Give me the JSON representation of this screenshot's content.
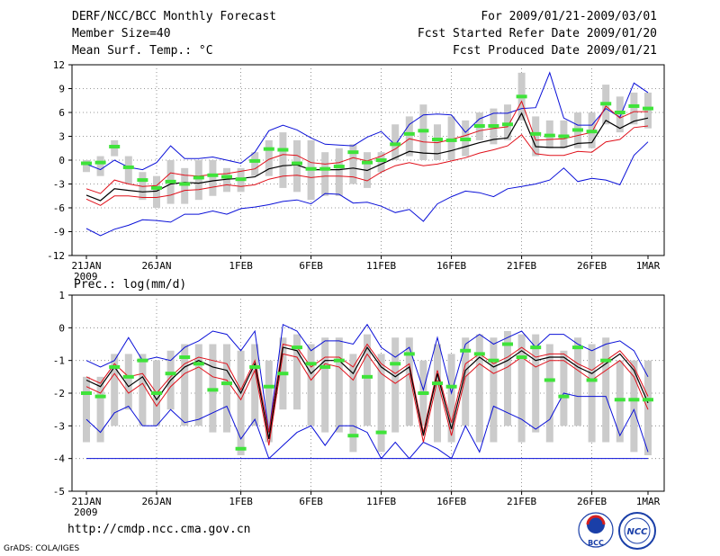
{
  "header": {
    "title": "DERF/NCC/BCC Monthly Forecast",
    "member_size": "Member Size=40",
    "variable_top": "Mean Surf. Temp.: °C",
    "period": "For 2009/01/21-2009/03/01",
    "fcst_started": "Fcst Started Refer Date 2009/01/20",
    "fcst_produced": "Fcst Produced Date 2009/01/21"
  },
  "footer": {
    "url": "http://cmdp.ncc.cma.gov.cn",
    "credit": "GrADS: COLA/IGES"
  },
  "logos": {
    "bcc_text": "BCC",
    "ncc_text": "NCC"
  },
  "colors": {
    "box": "#cbcbcb",
    "mean": "#000000",
    "spread": "#e0101a",
    "envelope": "#0a10d8",
    "median": "#3fe33a",
    "grid": "#7a7a7a"
  },
  "chart_data": [
    {
      "id": "temperature",
      "type": "line",
      "title": "Mean Surf. Temp.: °C",
      "x_tick_labels": [
        "21JAN",
        "26JAN",
        "1FEB",
        "6FEB",
        "11FEB",
        "16FEB",
        "21FEB",
        "26FEB",
        "1MAR"
      ],
      "x_sub_label": "2009",
      "y_ticks": [
        12,
        9,
        6,
        3,
        0,
        -3,
        -6,
        -9,
        -12
      ],
      "ylim": [
        -12,
        12
      ],
      "x_range": [
        0,
        39
      ],
      "series": [
        {
          "name": "max",
          "values": [
            -8.6,
            -9.5,
            -8.7,
            -8.2,
            -7.5,
            -7.6,
            -7.8,
            -6.8,
            -6.8,
            -6.4,
            -6.8,
            -6.1,
            -5.9,
            -5.6,
            -5.2,
            -5.0,
            -5.5,
            -4.2,
            -4.3,
            -5.4,
            -5.3,
            -5.8,
            -6.6,
            -6.2,
            -7.7,
            -5.5,
            -4.6,
            -3.9,
            -4.1,
            -4.6,
            -3.6,
            -3.3,
            -3.0,
            -2.5,
            -1.0,
            -2.7,
            -2.3,
            -2.5,
            -3.1,
            0.6,
            2.3
          ]
        },
        {
          "name": "min",
          "values": [
            -0.5,
            -1.2,
            0.0,
            -0.9,
            -1.2,
            -0.3,
            1.8,
            0.2,
            0.2,
            0.4,
            0.0,
            -0.4,
            1.0,
            3.7,
            4.4,
            3.8,
            2.8,
            2.0,
            1.9,
            1.8,
            2.9,
            3.6,
            1.9,
            4.5,
            5.7,
            5.8,
            5.7,
            3.5,
            5.2,
            5.9,
            5.9,
            6.5,
            6.6,
            11.0,
            5.3,
            4.4,
            4.4,
            6.5,
            5.4,
            9.7,
            8.5
          ]
        },
        {
          "name": "lower",
          "values": [
            -4.9,
            -5.7,
            -4.5,
            -4.5,
            -4.7,
            -4.7,
            -4.4,
            -3.8,
            -3.7,
            -3.4,
            -3.1,
            -3.3,
            -3.1,
            -2.4,
            -2.0,
            -1.9,
            -2.2,
            -2.0,
            -2.0,
            -2.1,
            -2.6,
            -1.5,
            -0.7,
            -0.3,
            -0.7,
            -0.5,
            -0.1,
            0.3,
            0.9,
            1.3,
            1.8,
            3.2,
            0.8,
            0.6,
            0.6,
            1.1,
            1.0,
            2.3,
            2.6,
            4.1,
            4.3
          ]
        },
        {
          "name": "upper",
          "values": [
            -3.6,
            -4.2,
            -2.5,
            -3.0,
            -3.3,
            -3.2,
            -1.6,
            -1.9,
            -2.0,
            -1.8,
            -1.7,
            -1.4,
            -1.1,
            0.1,
            0.7,
            0.6,
            -0.3,
            -0.5,
            -0.3,
            0.3,
            -0.1,
            0.5,
            1.4,
            2.7,
            2.3,
            2.2,
            2.6,
            3.1,
            3.7,
            4.0,
            4.2,
            7.4,
            2.5,
            2.6,
            2.7,
            3.1,
            3.5,
            6.8,
            5.3,
            6.1,
            6.1
          ]
        },
        {
          "name": "mean",
          "values": [
            -4.4,
            -5.1,
            -3.6,
            -3.8,
            -4.0,
            -3.9,
            -3.0,
            -2.8,
            -2.9,
            -2.6,
            -2.4,
            -2.3,
            -2.1,
            -1.1,
            -0.7,
            -0.6,
            -1.2,
            -1.2,
            -1.2,
            -1.0,
            -1.3,
            -0.5,
            0.3,
            1.1,
            0.9,
            0.8,
            1.2,
            1.7,
            2.2,
            2.6,
            2.8,
            5.9,
            1.7,
            1.6,
            1.6,
            2.1,
            2.2,
            5.0,
            4.0,
            4.9,
            5.3
          ]
        },
        {
          "name": "median",
          "values": [
            -0.4,
            -0.3,
            1.7,
            -0.9,
            -2.5,
            -3.5,
            -2.7,
            -3.0,
            -2.2,
            -1.9,
            -2.1,
            -2.4,
            -0.1,
            1.4,
            1.3,
            -0.4,
            -1.1,
            -1.1,
            -0.8,
            1.0,
            -0.3,
            0.0,
            2.0,
            3.3,
            3.7,
            2.6,
            2.5,
            2.6,
            4.3,
            4.3,
            4.5,
            8.0,
            3.3,
            3.1,
            3.0,
            3.8,
            3.6,
            7.1,
            6.0,
            6.8,
            6.5
          ]
        },
        {
          "name": "box_low",
          "values": [
            -1.5,
            -2.0,
            0.5,
            -3.0,
            -5.0,
            -6.0,
            -5.5,
            -5.5,
            -5.0,
            -4.5,
            -4.0,
            -4.0,
            -2.0,
            -2.0,
            -3.5,
            -4.0,
            -5.0,
            -4.5,
            -4.5,
            -3.0,
            -3.5,
            -1.5,
            0.0,
            0.5,
            0.0,
            0.0,
            0.0,
            0.5,
            2.5,
            2.0,
            2.5,
            5.0,
            0.5,
            1.5,
            1.5,
            1.5,
            1.5,
            4.5,
            3.5,
            4.5,
            4.0
          ]
        },
        {
          "name": "box_high",
          "values": [
            0.0,
            0.5,
            2.5,
            0.5,
            -1.5,
            -2.0,
            0.0,
            -1.0,
            0.0,
            0.0,
            -1.0,
            -1.0,
            1.0,
            2.5,
            3.5,
            2.5,
            2.5,
            1.0,
            1.5,
            2.0,
            1.0,
            1.0,
            4.5,
            5.5,
            7.0,
            4.5,
            5.5,
            5.0,
            6.0,
            6.5,
            7.0,
            11.0,
            5.5,
            5.0,
            5.0,
            6.0,
            6.0,
            9.5,
            8.0,
            8.5,
            8.5
          ]
        }
      ]
    },
    {
      "id": "precipitation",
      "type": "line",
      "title": "Prec.: log(mm/d)",
      "x_tick_labels": [
        "21JAN",
        "26JAN",
        "1FEB",
        "6FEB",
        "11FEB",
        "16FEB",
        "21FEB",
        "26FEB",
        "1MAR"
      ],
      "x_sub_label": "2009",
      "y_ticks": [
        1,
        0,
        -1,
        -2,
        -3,
        -4,
        -5
      ],
      "ylim": [
        -5,
        1
      ],
      "x_range": [
        0,
        39
      ],
      "baseline": -4,
      "series": [
        {
          "name": "max",
          "values": [
            -1.0,
            -1.2,
            -1.0,
            -0.3,
            -1.0,
            -0.9,
            -1.0,
            -0.6,
            -0.4,
            -0.1,
            -0.2,
            -0.7,
            -0.1,
            -3.2,
            0.1,
            -0.1,
            -0.7,
            -0.4,
            -0.4,
            -0.5,
            0.1,
            -0.6,
            -0.9,
            -0.6,
            -1.9,
            -0.3,
            -2.0,
            -0.5,
            -0.2,
            -0.5,
            -0.3,
            -0.1,
            -0.6,
            -0.2,
            -0.2,
            -0.5,
            -0.7,
            -0.5,
            -0.4,
            -0.7,
            -1.5
          ]
        },
        {
          "name": "min",
          "values": [
            -2.8,
            -3.2,
            -2.6,
            -2.4,
            -3.0,
            -3.0,
            -2.5,
            -2.9,
            -2.8,
            -2.6,
            -2.4,
            -3.4,
            -2.8,
            -4.0,
            -3.6,
            -3.2,
            -3.0,
            -3.6,
            -3.0,
            -3.0,
            -3.2,
            -4.0,
            -3.5,
            -4.0,
            -3.5,
            -3.7,
            -4.0,
            -3.0,
            -3.8,
            -2.4,
            -2.6,
            -2.8,
            -3.1,
            -2.8,
            -2.0,
            -2.1,
            -2.1,
            -2.1,
            -3.3,
            -2.5,
            -3.8
          ]
        },
        {
          "name": "lower",
          "values": [
            -1.8,
            -2.0,
            -1.4,
            -2.0,
            -1.7,
            -2.4,
            -1.8,
            -1.4,
            -1.2,
            -1.5,
            -1.6,
            -2.2,
            -1.3,
            -3.6,
            -0.8,
            -0.9,
            -1.6,
            -1.1,
            -1.2,
            -1.6,
            -0.8,
            -1.4,
            -1.7,
            -1.4,
            -3.5,
            -1.6,
            -3.3,
            -1.5,
            -1.1,
            -1.4,
            -1.2,
            -0.9,
            -1.2,
            -1.0,
            -1.0,
            -1.3,
            -1.6,
            -1.3,
            -1.0,
            -1.5,
            -2.5
          ]
        },
        {
          "name": "upper",
          "values": [
            -1.5,
            -1.7,
            -1.1,
            -1.5,
            -1.4,
            -2.0,
            -1.5,
            -1.1,
            -0.9,
            -1.0,
            -1.1,
            -1.9,
            -1.0,
            -3.2,
            -0.5,
            -0.6,
            -1.2,
            -0.9,
            -0.9,
            -1.2,
            -0.5,
            -1.1,
            -1.4,
            -1.1,
            -3.2,
            -1.3,
            -2.9,
            -1.1,
            -0.8,
            -1.1,
            -0.9,
            -0.6,
            -0.9,
            -0.8,
            -0.8,
            -1.1,
            -1.3,
            -1.0,
            -0.7,
            -1.2,
            -2.1
          ]
        },
        {
          "name": "mean",
          "values": [
            -1.6,
            -1.8,
            -1.2,
            -1.8,
            -1.5,
            -2.2,
            -1.6,
            -1.2,
            -1.0,
            -1.2,
            -1.3,
            -2.0,
            -1.1,
            -3.4,
            -0.6,
            -0.7,
            -1.4,
            -1.0,
            -1.0,
            -1.4,
            -0.6,
            -1.2,
            -1.5,
            -1.2,
            -3.3,
            -1.4,
            -3.1,
            -1.3,
            -0.9,
            -1.2,
            -1.0,
            -0.7,
            -1.0,
            -0.9,
            -0.9,
            -1.2,
            -1.4,
            -1.1,
            -0.8,
            -1.3,
            -2.3
          ]
        },
        {
          "name": "median",
          "values": [
            -2.0,
            -2.1,
            -1.2,
            -1.5,
            -1.0,
            -2.0,
            -1.4,
            -0.9,
            -1.1,
            -1.9,
            -1.7,
            -3.7,
            -1.2,
            -1.8,
            -1.4,
            -0.6,
            -1.1,
            -1.2,
            -1.0,
            -3.3,
            -1.5,
            -3.2,
            -1.1,
            -0.8,
            -2.0,
            -1.7,
            -1.8,
            -0.7,
            -0.8,
            -1.0,
            -0.5,
            -0.9,
            -0.6,
            -1.6,
            -2.1,
            -0.6,
            -1.6,
            -1.0,
            -2.2,
            -2.2,
            -2.2
          ]
        },
        {
          "name": "box_low",
          "values": [
            -3.5,
            -3.5,
            -3.0,
            -2.5,
            -3.0,
            -3.0,
            -2.5,
            -3.0,
            -3.0,
            -3.2,
            -3.2,
            -3.9,
            -3.0,
            -3.5,
            -2.5,
            -2.5,
            -3.0,
            -3.2,
            -3.2,
            -3.8,
            -3.0,
            -3.8,
            -3.2,
            -3.0,
            -3.0,
            -3.5,
            -3.5,
            -3.0,
            -3.5,
            -3.5,
            -3.0,
            -3.5,
            -3.2,
            -3.5,
            -3.0,
            -3.0,
            -3.5,
            -3.5,
            -3.5,
            -3.8,
            -3.9
          ]
        },
        {
          "name": "box_high",
          "values": [
            -1.5,
            -1.5,
            -0.8,
            -0.8,
            -0.8,
            -1.0,
            -0.7,
            -0.5,
            -0.5,
            -0.5,
            -0.5,
            -0.7,
            -0.5,
            -1.0,
            -0.3,
            -0.2,
            -0.5,
            -0.3,
            -0.3,
            -0.8,
            -0.2,
            -0.8,
            -0.3,
            -0.3,
            -1.0,
            -0.5,
            -0.8,
            -0.3,
            -0.2,
            -0.3,
            -0.1,
            -0.2,
            -0.2,
            -0.5,
            -0.7,
            -0.3,
            -0.5,
            -0.3,
            -1.0,
            -1.0,
            -1.0
          ]
        }
      ]
    }
  ]
}
